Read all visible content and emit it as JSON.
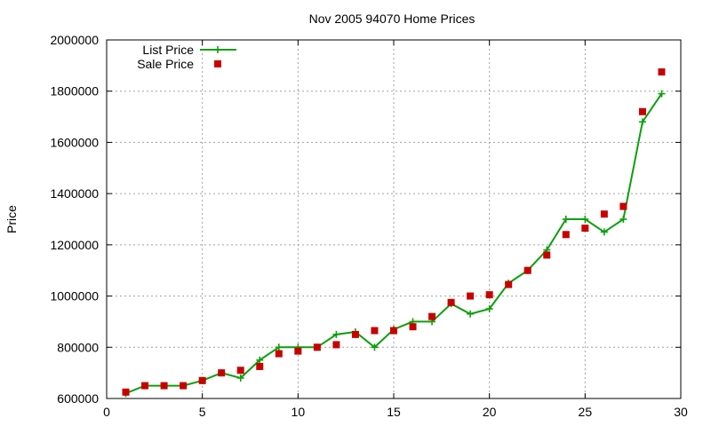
{
  "chart_data": {
    "type": "line",
    "title": "Nov 2005 94070 Home Prices",
    "xlabel": "",
    "ylabel": "Price",
    "xlim": [
      0,
      30
    ],
    "ylim": [
      600000,
      2000000
    ],
    "x_ticks": [
      0,
      5,
      10,
      15,
      20,
      25,
      30
    ],
    "y_ticks": [
      600000,
      800000,
      1000000,
      1200000,
      1400000,
      1600000,
      1800000,
      2000000
    ],
    "grid": true,
    "legend_position": "top-left",
    "series": [
      {
        "name": "List Price",
        "style": "line-plus",
        "color": "#0ca00c",
        "x": [
          1,
          2,
          3,
          4,
          5,
          6,
          7,
          8,
          9,
          10,
          11,
          12,
          13,
          14,
          15,
          16,
          17,
          18,
          19,
          20,
          21,
          22,
          23,
          24,
          25,
          26,
          27,
          28,
          29
        ],
        "values": [
          620000,
          650000,
          650000,
          650000,
          670000,
          700000,
          680000,
          750000,
          800000,
          800000,
          800000,
          850000,
          860000,
          800000,
          870000,
          900000,
          900000,
          970000,
          930000,
          950000,
          1050000,
          1100000,
          1180000,
          1300000,
          1300000,
          1250000,
          1300000,
          1680000,
          1790000
        ]
      },
      {
        "name": "Sale Price",
        "style": "square-markers",
        "color": "#c80000",
        "x": [
          1,
          2,
          3,
          4,
          5,
          6,
          7,
          8,
          9,
          10,
          11,
          12,
          13,
          14,
          15,
          16,
          17,
          18,
          19,
          20,
          21,
          22,
          23,
          24,
          25,
          26,
          27,
          28,
          29
        ],
        "values": [
          625000,
          650000,
          650000,
          650000,
          670000,
          700000,
          710000,
          725000,
          775000,
          785000,
          800000,
          810000,
          850000,
          865000,
          865000,
          880000,
          920000,
          975000,
          1000000,
          1005000,
          1045000,
          1100000,
          1160000,
          1240000,
          1265000,
          1320000,
          1350000,
          1720000,
          1875000
        ]
      }
    ]
  }
}
